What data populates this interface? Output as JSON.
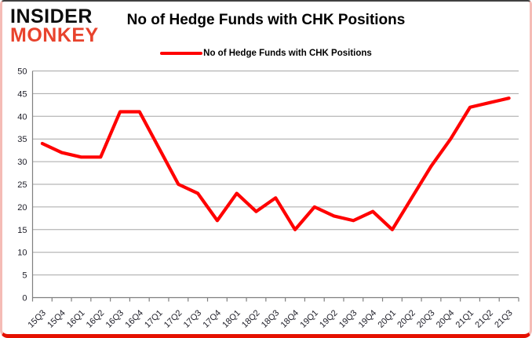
{
  "brand": {
    "line1": "INSIDER",
    "line2": "MONKEY",
    "line1_color": "#0d0d0d",
    "line2_color": "#e8432d"
  },
  "header": {
    "title": "No of Hedge Funds with CHK Positions"
  },
  "legend": {
    "label": "No of Hedge Funds with CHK Positions",
    "line_color": "#ff0000"
  },
  "chart_data": {
    "type": "line",
    "title": "No of Hedge Funds with CHK Positions",
    "xlabel": "",
    "ylabel": "",
    "ylim": [
      0,
      50
    ],
    "ytick_step": 5,
    "grid": "horizontal",
    "legend_position": "top",
    "categories": [
      "15Q3",
      "15Q4",
      "16Q1",
      "16Q2",
      "16Q3",
      "16Q4",
      "17Q1",
      "17Q2",
      "17Q3",
      "17Q4",
      "18Q1",
      "18Q2",
      "18Q3",
      "18Q4",
      "19Q1",
      "19Q2",
      "19Q3",
      "19Q4",
      "20Q1",
      "20Q2",
      "20Q3",
      "20Q4",
      "21Q1",
      "21Q2",
      "21Q3"
    ],
    "series": [
      {
        "name": "No of Hedge Funds with CHK Positions",
        "color": "#ff0000",
        "values": [
          34,
          32,
          31,
          31,
          41,
          41,
          33,
          25,
          23,
          17,
          23,
          19,
          22,
          15,
          20,
          18,
          17,
          19,
          15,
          22,
          29,
          35,
          42,
          43,
          44
        ]
      }
    ]
  }
}
